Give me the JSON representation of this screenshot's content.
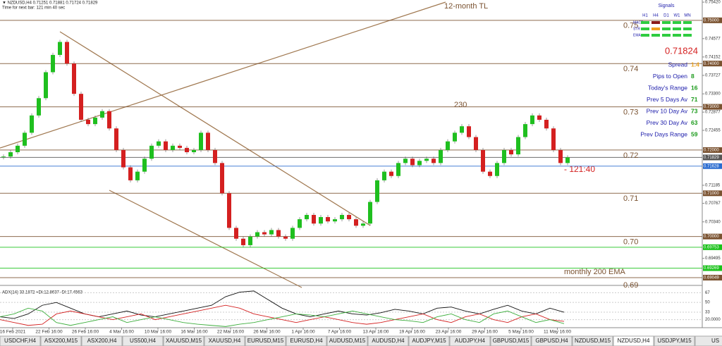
{
  "header": {
    "symbol_line": "▼ NZDUSD,H4  0.71251 0.71881 0.71724 0.71829",
    "timer": "Time for next bar: 121 min 40 sec"
  },
  "chart_data": {
    "type": "candlestick",
    "closes": [
      0.7185,
      0.7195,
      0.721,
      0.724,
      0.728,
      0.732,
      0.738,
      0.742,
      0.745,
      0.74,
      0.733,
      0.727,
      0.726,
      0.7275,
      0.729,
      0.725,
      0.72,
      0.716,
      0.713,
      0.715,
      0.718,
      0.721,
      0.722,
      0.72,
      0.721,
      0.7205,
      0.7195,
      0.72,
      0.724,
      0.72,
      0.717,
      0.71,
      0.702,
      0.6995,
      0.698,
      0.7,
      0.701,
      0.7005,
      0.7015,
      0.7,
      0.6995,
      0.702,
      0.704,
      0.705,
      0.703,
      0.7045,
      0.7035,
      0.704,
      0.705,
      0.704,
      0.7025,
      0.703,
      0.708,
      0.713,
      0.715,
      0.714,
      0.717,
      0.718,
      0.7165,
      0.7175,
      0.718,
      0.717,
      0.72,
      0.722,
      0.724,
      0.7255,
      0.723,
      0.72,
      0.715,
      0.714,
      0.717,
      0.72,
      0.719,
      0.723,
      0.726,
      0.728,
      0.727,
      0.725,
      0.72,
      0.717,
      0.7183
    ],
    "up_color": "#1fbf1f",
    "down_color": "#d42020",
    "ylim": [
      0.6887,
      0.7547
    ],
    "yticks": [
      {
        "value": 0.7542,
        "label": "0.75420"
      },
      {
        "value": 0.74577,
        "label": "0.74577"
      },
      {
        "value": 0.74152,
        "label": "0.74152"
      },
      {
        "value": 0.73727,
        "label": "0.73727"
      },
      {
        "value": 0.733,
        "label": "0.73300"
      },
      {
        "value": 0.72877,
        "label": "0.72877"
      },
      {
        "value": 0.72455,
        "label": "0.72455"
      },
      {
        "value": 0.71185,
        "label": "0.71185"
      },
      {
        "value": 0.70767,
        "label": "0.70767"
      },
      {
        "value": 0.7034,
        "label": "0.70340"
      },
      {
        "value": 0.69495,
        "label": "0.69495"
      }
    ],
    "price_boxes": [
      {
        "value": 0.75,
        "label": "0.75000",
        "color": "#7a5230"
      },
      {
        "value": 0.74,
        "label": "0.74000",
        "color": "#7a5230"
      },
      {
        "value": 0.73,
        "label": "0.73000",
        "color": "#7a5230"
      },
      {
        "value": 0.72,
        "label": "0.72000",
        "color": "#7a5230"
      },
      {
        "value": 0.71829,
        "label": "0.71829",
        "color": "#555555"
      },
      {
        "value": 0.71628,
        "label": "0.71628",
        "color": "#2a6cd0"
      },
      {
        "value": 0.71,
        "label": "0.71000",
        "color": "#7a5230"
      },
      {
        "value": 0.7,
        "label": "0.70000",
        "color": "#7a5230"
      },
      {
        "value": 0.69753,
        "label": "0.69753",
        "color": "#19c219"
      },
      {
        "value": 0.69269,
        "label": "0.69269",
        "color": "#19c219"
      },
      {
        "value": 0.69049,
        "label": "0.69049",
        "color": "#7a5230"
      }
    ],
    "levels": [
      0.75,
      0.74,
      0.73,
      0.72,
      0.71,
      {
        "value": 0.7,
        "label": "0.70"
      },
      0.69
    ],
    "annotations": {
      "trendline": "12-month TL",
      "pips": "230",
      "countdown": "- 121:40",
      "ema": "monthly 200 EMA"
    },
    "x_labels": [
      "16 Feb 2021",
      "22 Feb 16:00",
      "26 Feb 16:00",
      "4 Mar 16:00",
      "10 Mar 16:00",
      "16 Mar 16:00",
      "22 Mar 16:00",
      "26 Mar 16:00",
      "1 Apr 16:00",
      "7 Apr 16:00",
      "13 Apr 16:00",
      "19 Apr 16:00",
      "23 Apr 16:00",
      "29 Apr 16:00",
      "5 May 16:00",
      "11 May 16:00"
    ]
  },
  "indicator": {
    "type": "line",
    "title": "ADX(14) 33.1872 +DI:12.8637 -DI:17.4563",
    "ylim": [
      6,
      76
    ],
    "yticks": [
      67,
      50,
      33,
      {
        "value": 20,
        "label": "20.0000"
      }
    ],
    "series": [
      {
        "color": "#111111",
        "values": [
          25,
          22,
          30,
          45,
          50,
          40,
          30,
          25,
          30,
          35,
          28,
          25,
          30,
          35,
          40,
          45,
          60,
          68,
          70,
          55,
          40,
          30,
          25,
          30,
          35,
          30,
          28,
          32,
          38,
          35,
          30,
          40,
          42,
          35,
          30,
          38,
          45,
          35,
          30,
          40,
          33
        ]
      },
      {
        "color": "#d42020",
        "values": [
          20,
          15,
          10,
          12,
          30,
          35,
          30,
          25,
          20,
          25,
          30,
          20,
          25,
          30,
          35,
          40,
          45,
          40,
          30,
          25,
          20,
          15,
          20,
          25,
          20,
          15,
          12,
          15,
          20,
          25,
          30,
          20,
          15,
          25,
          30,
          20,
          15,
          25,
          30,
          20,
          17
        ]
      },
      {
        "color": "#3cae3c",
        "values": [
          25,
          30,
          40,
          35,
          15,
          10,
          15,
          20,
          25,
          15,
          20,
          25,
          20,
          15,
          12,
          10,
          8,
          12,
          15,
          20,
          25,
          30,
          28,
          25,
          30,
          35,
          30,
          25,
          20,
          18,
          15,
          25,
          30,
          20,
          15,
          30,
          35,
          25,
          15,
          20,
          13
        ]
      }
    ]
  },
  "signals": {
    "title": "Signals",
    "columns": [
      "H1",
      "H4",
      "D1",
      "W1",
      "MN"
    ],
    "rows": [
      {
        "label": "MACD",
        "colors": [
          "#2ecc40",
          "#8b1a1a",
          "#2ecc40",
          "#2ecc40",
          "#2ecc40"
        ]
      },
      {
        "label": "STR",
        "colors": [
          "#2ecc40",
          "#f0a020",
          "#2ecc40",
          "#2ecc40",
          "#2ecc40"
        ]
      },
      {
        "label": "EMA",
        "colors": [
          "#2ecc40",
          "#2ecc40",
          "#2ecc40",
          "#2ecc40",
          "#2ecc40"
        ]
      }
    ],
    "price": "0.71824",
    "stats": [
      {
        "label": "Spread",
        "value": 1.4,
        "color": "#e8a020"
      },
      {
        "label": "Pips to Open",
        "value": 8,
        "color": "#1a9a1a"
      },
      {
        "label": "Today's Range",
        "value": 16,
        "color": "#1a9a1a"
      },
      {
        "label": "Prev 5 Days Av",
        "value": 71,
        "color": "#1a9a1a"
      },
      {
        "label": "Prev 10 Day Av",
        "value": 73,
        "color": "#1a9a1a"
      },
      {
        "label": "Prev 30 Day Av",
        "value": 63,
        "color": "#1a9a1a"
      },
      {
        "label": "Prev Days Range",
        "value": 59,
        "color": "#1a9a1a"
      }
    ]
  },
  "tabs": {
    "items": [
      "USDCHF,H4",
      "ASX200,M15",
      "ASX200,H4",
      "US500,H4",
      "XAUUSD,M15",
      "XAUUSD,H4",
      "EURUSD,M15",
      "EURUSD,H4",
      "AUDUSD,M15",
      "AUDUSD,H4",
      "AUDJPY,M15",
      "AUDJPY,H4",
      "GBPUSD,M15",
      "GBPUSD,H4",
      "NZDUSD,M15",
      "NZDUSD,H4",
      "USDJPY,M15",
      "US"
    ],
    "active": 15
  }
}
